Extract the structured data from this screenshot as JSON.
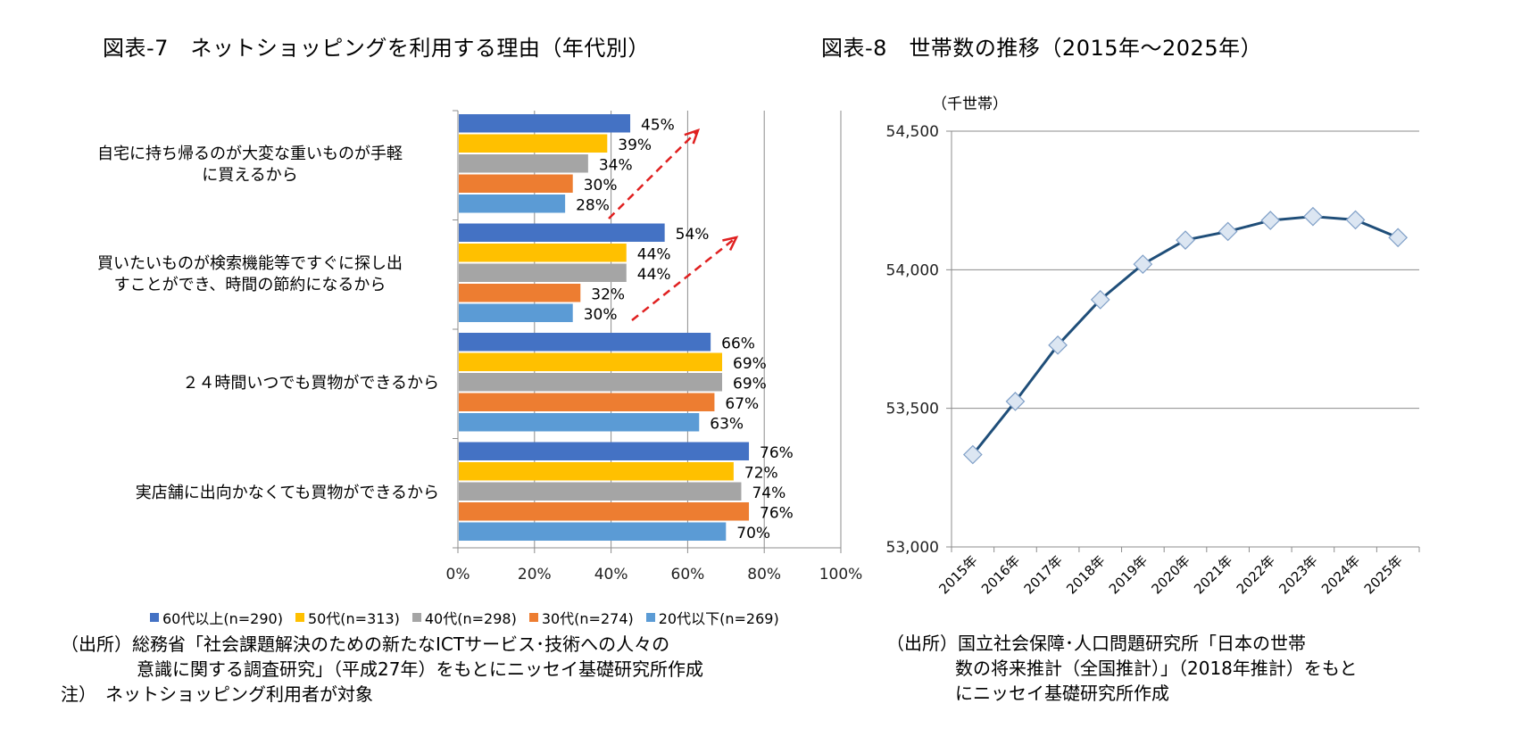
{
  "left": {
    "title": "図表-7　ネットショッピングを利用する理由（年代別）",
    "source_lines": [
      "（出所）総務省「社会課題解決のための新たなICTサービス･技術への人々の",
      "意識に関する調査研究」（平成27年）をもとにニッセイ基礎研究所作成",
      "注）　ネットショッピング利用者が対象"
    ]
  },
  "right": {
    "title": "図表-8　世帯数の推移（2015年～2025年）",
    "source_lines": [
      "（出所）国立社会保障･人口問題研究所「日本の世帯",
      "数の将来推計（全国推計）」（2018年推計）をもと",
      "にニッセイ基礎研究所作成"
    ]
  },
  "chart_data": [
    {
      "type": "bar",
      "orientation": "horizontal",
      "title": "ネットショッピングを利用する理由（年代別）",
      "categories": [
        [
          "自宅に持ち帰るのが大変な重いものが手軽",
          "に買えるから"
        ],
        [
          "買いたいものが検索機能等ですぐに探し出",
          "すことができ、時間の節約になるから"
        ],
        [
          "２４時間いつでも買物ができるから"
        ],
        [
          "実店舗に出向かなくても買物ができるから"
        ]
      ],
      "series": [
        {
          "name": "60代以上(n=290)",
          "color": "#4472C4",
          "values": [
            45,
            54,
            66,
            76
          ]
        },
        {
          "name": "50代(n=313)",
          "color": "#FFC000",
          "values": [
            39,
            44,
            69,
            72
          ]
        },
        {
          "name": "40代(n=298)",
          "color": "#A5A5A5",
          "values": [
            34,
            44,
            69,
            74
          ]
        },
        {
          "name": "30代(n=274)",
          "color": "#ED7D31",
          "values": [
            30,
            32,
            67,
            76
          ]
        },
        {
          "name": "20代以下(n=269)",
          "color": "#5B9BD5",
          "values": [
            28,
            30,
            63,
            70
          ]
        }
      ],
      "value_suffix": "%",
      "xlim": [
        0,
        100
      ],
      "xticks": [
        "0%",
        "20%",
        "40%",
        "60%",
        "80%",
        "100%"
      ],
      "xtick_values": [
        0,
        20,
        40,
        60,
        80,
        100
      ],
      "grid": true,
      "legend": "bottom",
      "annotations": [
        {
          "type": "dashed-arrow",
          "color": "#E02020",
          "category_index": 0,
          "meaning": "年代が高いほど割合が上昇"
        },
        {
          "type": "dashed-arrow",
          "color": "#E02020",
          "category_index": 1,
          "meaning": "年代が高いほど割合が上昇"
        }
      ]
    },
    {
      "type": "line",
      "title": "世帯数の推移（2015年～2025年）",
      "ylabel": "（千世帯）",
      "x": [
        "2015年",
        "2016年",
        "2017年",
        "2018年",
        "2019年",
        "2020年",
        "2021年",
        "2022年",
        "2023年",
        "2024年",
        "2025年"
      ],
      "series": [
        {
          "name": "世帯数",
          "color": "#1F4E79",
          "marker_fill": "#DCE6F2",
          "marker_stroke": "#7F9FC7",
          "values": [
            53333,
            53525,
            53728,
            53892,
            54020,
            54107,
            54138,
            54178,
            54192,
            54180,
            54116
          ]
        }
      ],
      "ylim": [
        53000,
        54500
      ],
      "yticks": [
        "53,000",
        "53,500",
        "54,000",
        "54,500"
      ],
      "ytick_values": [
        53000,
        53500,
        54000,
        54500
      ],
      "grid": true,
      "legend": "none"
    }
  ]
}
